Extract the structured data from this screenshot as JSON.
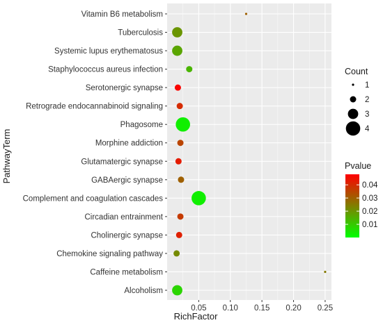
{
  "chart_data": {
    "type": "scatter",
    "xlabel": "RichFactor",
    "ylabel": "PathwayTerm",
    "xlim": [
      0.0,
      0.26
    ],
    "x_ticks": [
      "0.05",
      "0.10",
      "0.15",
      "0.20",
      "0.25"
    ],
    "x_tick_values": [
      0.05,
      0.1,
      0.15,
      0.2,
      0.25
    ],
    "grid": true,
    "legend_position": "right",
    "categories": [
      "Alcoholism",
      "Caffeine metabolism",
      "Chemokine signaling pathway",
      "Cholinergic synapse",
      "Circadian entrainment",
      "Complement and coagulation cascades",
      "GABAergic synapse",
      "Glutamatergic synapse",
      "Morphine addiction",
      "Phagosome",
      "Retrograde endocannabinoid signaling",
      "Serotonergic synapse",
      "Staphylococcus aureus infection",
      "Systemic lupus erythematosus",
      "Tuberculosis",
      "Vitamin B6 metabolism"
    ],
    "points": [
      {
        "term": "Alcoholism",
        "richfactor": 0.016,
        "count": 3,
        "pvalue": 0.008
      },
      {
        "term": "Caffeine metabolism",
        "richfactor": 0.25,
        "count": 1,
        "pvalue": 0.025
      },
      {
        "term": "Chemokine signaling pathway",
        "richfactor": 0.015,
        "count": 2,
        "pvalue": 0.022
      },
      {
        "term": "Cholinergic synapse",
        "richfactor": 0.019,
        "count": 2,
        "pvalue": 0.042
      },
      {
        "term": "Circadian entrainment",
        "richfactor": 0.021,
        "count": 2,
        "pvalue": 0.037
      },
      {
        "term": "Complement and coagulation cascades",
        "richfactor": 0.05,
        "count": 4,
        "pvalue": 0.003
      },
      {
        "term": "GABAergic synapse",
        "richfactor": 0.022,
        "count": 2,
        "pvalue": 0.03
      },
      {
        "term": "Glutamatergic synapse",
        "richfactor": 0.018,
        "count": 2,
        "pvalue": 0.043
      },
      {
        "term": "Morphine addiction",
        "richfactor": 0.021,
        "count": 2,
        "pvalue": 0.035
      },
      {
        "term": "Phagosome",
        "richfactor": 0.025,
        "count": 4,
        "pvalue": 0.003
      },
      {
        "term": "Retrograde endocannabinoid signaling",
        "richfactor": 0.02,
        "count": 2,
        "pvalue": 0.04
      },
      {
        "term": "Serotonergic synapse",
        "richfactor": 0.017,
        "count": 2,
        "pvalue": 0.047
      },
      {
        "term": "Staphylococcus aureus infection",
        "richfactor": 0.035,
        "count": 2,
        "pvalue": 0.014
      },
      {
        "term": "Systemic lupus erythematosus",
        "richfactor": 0.016,
        "count": 3,
        "pvalue": 0.017
      },
      {
        "term": "Tuberculosis",
        "richfactor": 0.016,
        "count": 3,
        "pvalue": 0.02
      },
      {
        "term": "Vitamin B6 metabolism",
        "richfactor": 0.125,
        "count": 1,
        "pvalue": 0.03
      }
    ],
    "legends": {
      "size": {
        "title": "Count",
        "values": [
          1,
          2,
          3,
          4
        ]
      },
      "color": {
        "title": "Pvalue",
        "ticks": [
          "0.01",
          "0.02",
          "0.03",
          "0.04"
        ],
        "tick_values": [
          0.01,
          0.02,
          0.03,
          0.04
        ],
        "range": [
          0.0,
          0.048
        ],
        "low_color": "#00ff00",
        "high_color": "#ff0000"
      }
    },
    "colors": {
      "panel_background": "#ebebeb",
      "grid_major": "#ffffff"
    }
  }
}
